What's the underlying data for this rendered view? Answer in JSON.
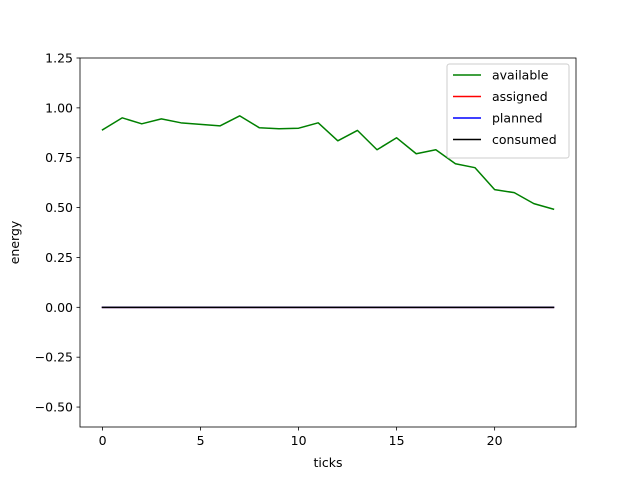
{
  "chart_data": {
    "type": "line",
    "title": "",
    "xlabel": "ticks",
    "ylabel": "energy",
    "xlim": [
      -1.15,
      24.15
    ],
    "ylim": [
      -0.6,
      1.25
    ],
    "xticks": [
      0,
      5,
      10,
      15,
      20
    ],
    "yticks": [
      -0.5,
      -0.25,
      0.0,
      0.25,
      0.5,
      0.75,
      1.0,
      1.25
    ],
    "xtick_labels": [
      "0",
      "5",
      "10",
      "15",
      "20"
    ],
    "ytick_labels": [
      "−0.50",
      "−0.25",
      "0.00",
      "0.25",
      "0.50",
      "0.75",
      "1.00",
      "1.25"
    ],
    "legend_position": "top-right",
    "grid": false,
    "x": [
      0,
      1,
      2,
      3,
      4,
      5,
      6,
      7,
      8,
      9,
      10,
      11,
      12,
      13,
      14,
      15,
      16,
      17,
      18,
      19,
      20,
      21,
      22,
      23
    ],
    "series": [
      {
        "name": "available",
        "color": "#008000",
        "values": [
          0.89,
          0.95,
          0.92,
          0.945,
          0.925,
          0.917,
          0.91,
          0.96,
          0.9,
          0.895,
          0.898,
          0.925,
          0.835,
          0.887,
          0.79,
          0.85,
          0.77,
          0.79,
          0.72,
          0.7,
          0.59,
          0.575,
          0.52,
          0.492
        ]
      },
      {
        "name": "assigned",
        "color": "#ff0000",
        "values": [
          0,
          0,
          0,
          0,
          0,
          0,
          0,
          0,
          0,
          0,
          0,
          0,
          0,
          0,
          0,
          0,
          0,
          0,
          0,
          0,
          0,
          0,
          0,
          0
        ]
      },
      {
        "name": "planned",
        "color": "#0000ff",
        "values": [
          0,
          0,
          0,
          0,
          0,
          0,
          0,
          0,
          0,
          0,
          0,
          0,
          0,
          0,
          0,
          0,
          0,
          0,
          0,
          0,
          0,
          0,
          0,
          0
        ]
      },
      {
        "name": "consumed",
        "color": "#000000",
        "values": [
          0,
          0,
          0,
          0,
          0,
          0,
          0,
          0,
          0,
          0,
          0,
          0,
          0,
          0,
          0,
          0,
          0,
          0,
          0,
          0,
          0,
          0,
          0,
          0
        ]
      }
    ]
  }
}
